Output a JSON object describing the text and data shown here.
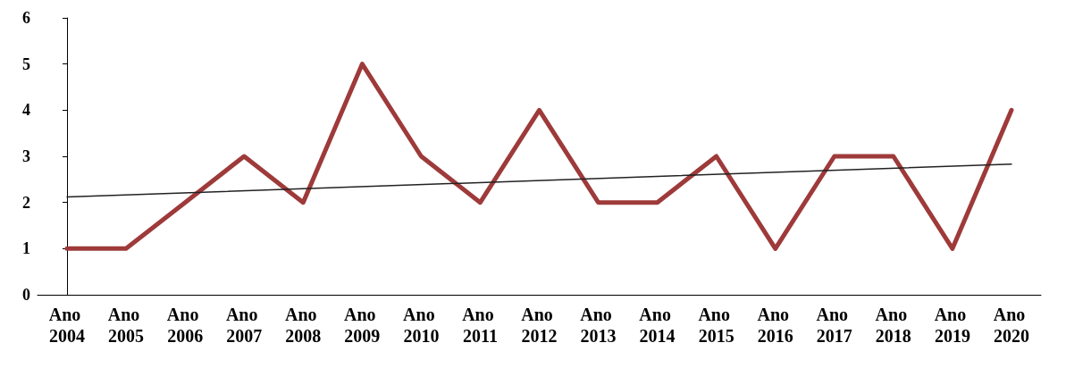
{
  "chart_data": {
    "type": "line",
    "categories": [
      "Ano 2004",
      "Ano 2005",
      "Ano 2006",
      "Ano 2007",
      "Ano 2008",
      "Ano 2009",
      "Ano 2010",
      "Ano 2011",
      "Ano 2012",
      "Ano 2013",
      "Ano 2014",
      "Ano 2015",
      "Ano 2016",
      "Ano 2017",
      "Ano 2018",
      "Ano 2019",
      "Ano 2020"
    ],
    "series": [
      {
        "color": "#9e3a3a",
        "values": [
          1,
          1,
          2,
          3,
          2,
          5,
          3,
          2,
          4,
          2,
          2,
          3,
          1,
          3,
          3,
          1,
          4
        ]
      },
      {
        "type": "line",
        "color": "#222222",
        "x": [
          "Ano 2004",
          "Ano 2020"
        ],
        "values": [
          2.12,
          2.83
        ]
      }
    ],
    "ylim": [
      0,
      6
    ],
    "yticks": [
      0,
      1,
      2,
      3,
      4,
      5,
      6
    ],
    "grid": false,
    "marker": "none",
    "line_style": "solid"
  }
}
